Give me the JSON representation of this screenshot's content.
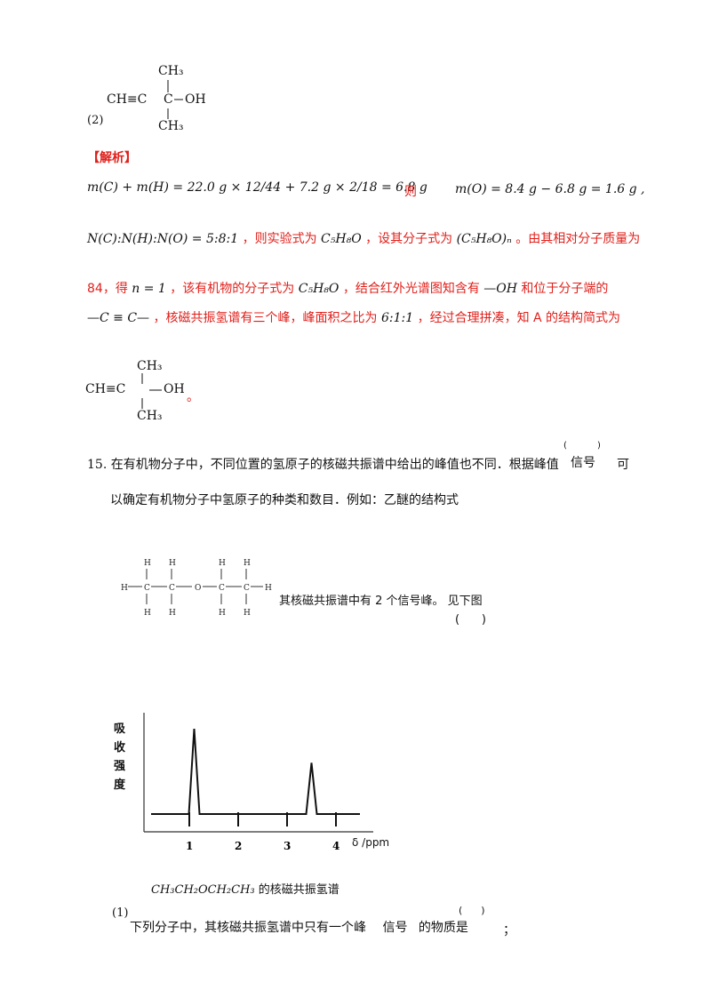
{
  "part2": {
    "label": "(2)",
    "structure": {
      "left": "CH≡C",
      "center": "C",
      "right": "OH",
      "top": "CH₃",
      "bottom": "CH₃"
    }
  },
  "analysis": {
    "header": "【解析】",
    "eq1": "m(C) + m(H) = 22.0 g × 12/44 + 7.2 g × 2/18 = 6.8 g",
    "ze": "则",
    "eq2": "m(O) = 8.4 g − 6.8 g = 1.6 g ,",
    "ratio": "N(C):N(H):N(O) = 5:8:1",
    "t1": "，则实验式为",
    "empirical": "C₅H₈O",
    "t2": "，设其分子式为",
    "molformula": "(C₅H₈O)ₙ",
    "t3": "。由其相对分子质量为",
    "t4": "84，得",
    "n1": "n = 1",
    "t5": "，该有机物的分子式为",
    "formula2": "C₅H₈O",
    "t6": "，结合红外光谱图知含有",
    "oh": "—OH",
    "t7": "和位于分子端的",
    "cc": "—C ≡ C—",
    "t8": "，核磁共振氢谱有三个峰，峰面积之比为",
    "ratio2": "6:1:1",
    "t9": "，经过合理拼凑，知 A 的结构简式为",
    "struct2": {
      "left": "CH≡C",
      "right": "OH",
      "top": "CH₃",
      "bottom": "CH₃",
      "dot": "。"
    }
  },
  "q15": {
    "num": "15.",
    "line1a": "在有机物分子中，不同位置的氢原子的核磁共振谱中给出的峰值也不同．根据峰值",
    "paren_open": "(",
    "signal": "信号",
    "paren_close": ")",
    "ke": "可",
    "line2": "以确定有机物分子中氢原子的种类和数目．例如：乙醚的结构式",
    "ether": {
      "H": "H",
      "C": "C",
      "O": "O"
    },
    "after": "其核磁共振谱中有 2 个信号峰。 见下图",
    "blank": "(      )"
  },
  "chart_data": {
    "type": "line",
    "ylabel": "吸收强度",
    "ylabel_chars": [
      "吸",
      "收",
      "强",
      "度"
    ],
    "xlabel": "δ /ppm",
    "ticks": [
      "1",
      "2",
      "3",
      "4"
    ],
    "peaks": [
      {
        "x": 1.1,
        "y": 1.0
      },
      {
        "x": 3.5,
        "y": 0.6
      }
    ],
    "caption_formula": "CH₃CH₂OCH₂CH₃",
    "caption_text": "的核磁共振氢谱"
  },
  "q1": {
    "num": "(1)",
    "text_a": "下列分子中，其核磁共振氢谱中只有一个峰",
    "signal": "信号",
    "text_b": "的物质是",
    "blank": "(      )",
    "end": "；"
  }
}
